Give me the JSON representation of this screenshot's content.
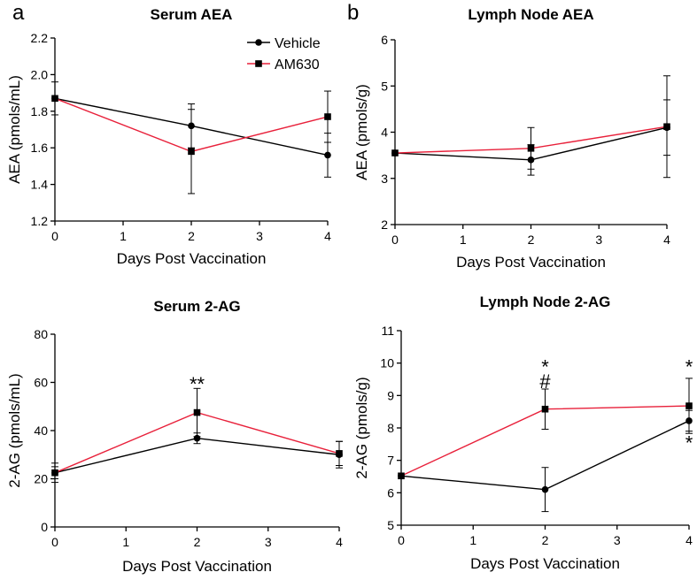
{
  "panel_letters": [
    "a",
    "b"
  ],
  "chart_data": [
    {
      "type": "line",
      "title": "Serum AEA",
      "xlabel": "Days Post Vaccination",
      "ylabel": "AEA (pmols/mL)",
      "xlim": [
        0,
        4
      ],
      "ylim": [
        1.2,
        2.2
      ],
      "xticks": [
        0,
        1,
        2,
        3,
        4
      ],
      "yticks": [
        1.2,
        1.4,
        1.6,
        1.8,
        2.0,
        2.2
      ],
      "ytick_labels": [
        "1.2",
        "1.4",
        "1.6",
        "1.8",
        "2.0",
        "2.2"
      ],
      "legend": {
        "position": "top-right",
        "entries": [
          "Vehicle",
          "AM630"
        ]
      },
      "series": [
        {
          "name": "Vehicle",
          "color": "#000000",
          "marker": "circle",
          "x": [
            0,
            2,
            4
          ],
          "y": [
            1.87,
            1.72,
            1.56
          ],
          "err": [
            0.09,
            0.12,
            0.12
          ]
        },
        {
          "name": "AM630",
          "color": "#e8203a",
          "marker": "square",
          "x": [
            0,
            2,
            4
          ],
          "y": [
            1.87,
            1.58,
            1.77
          ],
          "err": [
            0.0,
            0.23,
            0.14
          ]
        }
      ],
      "annotations": []
    },
    {
      "type": "line",
      "title": "Lymph Node AEA",
      "xlabel": "Days Post Vaccination",
      "ylabel": "AEA (pmols/g)",
      "xlim": [
        0,
        4
      ],
      "ylim": [
        2,
        6
      ],
      "xticks": [
        0,
        1,
        2,
        3,
        4
      ],
      "yticks": [
        2,
        3,
        4,
        5,
        6
      ],
      "ytick_labels": [
        "2",
        "3",
        "4",
        "5",
        "6"
      ],
      "series": [
        {
          "name": "Vehicle",
          "color": "#000000",
          "marker": "circle",
          "x": [
            0,
            2,
            4
          ],
          "y": [
            3.55,
            3.4,
            4.1
          ],
          "err": [
            0.0,
            0.33,
            0.6
          ]
        },
        {
          "name": "AM630",
          "color": "#e8203a",
          "marker": "square",
          "x": [
            0,
            2,
            4
          ],
          "y": [
            3.55,
            3.65,
            4.12
          ],
          "err": [
            0.0,
            0.45,
            1.1
          ]
        }
      ],
      "annotations": []
    },
    {
      "type": "line",
      "title": "Serum 2-AG",
      "xlabel": "Days Post Vaccination",
      "ylabel": "2-AG (pmols/mL)",
      "xlim": [
        0,
        4
      ],
      "ylim": [
        0,
        80
      ],
      "xticks": [
        0,
        1,
        2,
        3,
        4
      ],
      "yticks": [
        0,
        20,
        40,
        60,
        80
      ],
      "ytick_labels": [
        "0",
        "20",
        "40",
        "60",
        "80"
      ],
      "series": [
        {
          "name": "Vehicle",
          "color": "#000000",
          "marker": "circle",
          "x": [
            0,
            2,
            4
          ],
          "y": [
            22.5,
            36.8,
            30
          ],
          "err": [
            4,
            2.2,
            5.5
          ]
        },
        {
          "name": "AM630",
          "color": "#e8203a",
          "marker": "square",
          "x": [
            0,
            2,
            4
          ],
          "y": [
            22.5,
            47.5,
            30.5
          ],
          "err": [
            2.5,
            10,
            5
          ]
        }
      ],
      "annotations": [
        {
          "x": 2,
          "y": 59.5,
          "text": "**"
        }
      ]
    },
    {
      "type": "line",
      "title": "Lymph Node 2-AG",
      "xlabel": "Days Post Vaccination",
      "ylabel": "2-AG (pmols/g)",
      "xlim": [
        0,
        4
      ],
      "ylim": [
        5,
        11
      ],
      "xticks": [
        0,
        1,
        2,
        3,
        4
      ],
      "yticks": [
        5,
        6,
        7,
        8,
        9,
        10,
        11
      ],
      "ytick_labels": [
        "5",
        "6",
        "7",
        "8",
        "9",
        "10",
        "11"
      ],
      "series": [
        {
          "name": "Vehicle",
          "color": "#000000",
          "marker": "circle",
          "x": [
            0,
            2,
            4
          ],
          "y": [
            6.52,
            6.1,
            8.22
          ],
          "err": [
            0.0,
            0.68,
            0.32
          ]
        },
        {
          "name": "AM630",
          "color": "#e8203a",
          "marker": "square",
          "x": [
            0,
            2,
            4
          ],
          "y": [
            6.52,
            8.58,
            8.68
          ],
          "err": [
            0.0,
            0.62,
            0.85
          ]
        }
      ],
      "annotations": [
        {
          "x": 2,
          "y": 9.9,
          "text": "*"
        },
        {
          "x": 2,
          "y": 9.45,
          "text": "#"
        },
        {
          "x": 4,
          "y": 9.9,
          "text": "*"
        },
        {
          "x": 4,
          "y": 7.55,
          "text": "*"
        }
      ]
    }
  ]
}
